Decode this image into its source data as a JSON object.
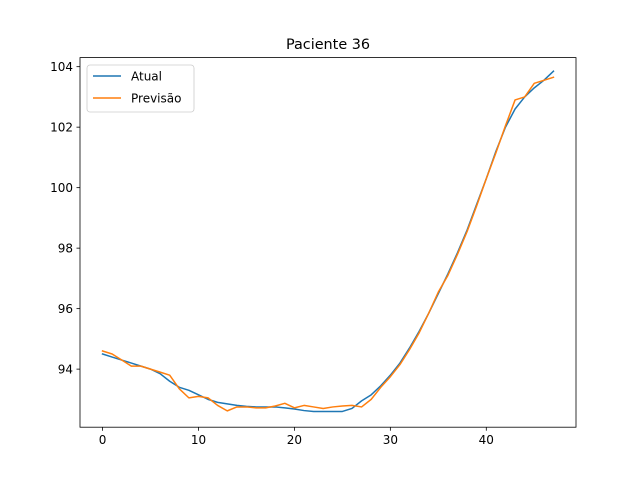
{
  "chart_data": {
    "type": "line",
    "title": "Paciente 36",
    "xlabel": "",
    "ylabel": "",
    "xlim": [
      -2.35,
      49.35
    ],
    "ylim": [
      92.08,
      104.3
    ],
    "xticks": [
      0,
      10,
      20,
      30,
      40
    ],
    "yticks": [
      94,
      96,
      98,
      100,
      102,
      104
    ],
    "grid": false,
    "legend_position": "top-left",
    "series": [
      {
        "name": "Atual",
        "color": "#1f77b4",
        "x": [
          0,
          1,
          2,
          3,
          4,
          5,
          6,
          7,
          8,
          9,
          10,
          11,
          12,
          13,
          14,
          15,
          16,
          17,
          18,
          19,
          20,
          21,
          22,
          23,
          24,
          25,
          26,
          27,
          28,
          29,
          30,
          31,
          32,
          33,
          34,
          35,
          36,
          37,
          38,
          39,
          40,
          41,
          42,
          43,
          44,
          45,
          46,
          47
        ],
        "values": [
          94.5,
          94.4,
          94.3,
          94.2,
          94.1,
          94.0,
          93.85,
          93.6,
          93.4,
          93.3,
          93.15,
          93.0,
          92.9,
          92.85,
          92.8,
          92.77,
          92.75,
          92.75,
          92.75,
          92.72,
          92.68,
          92.63,
          92.6,
          92.6,
          92.6,
          92.6,
          92.7,
          92.95,
          93.15,
          93.45,
          93.8,
          94.2,
          94.7,
          95.25,
          95.85,
          96.5,
          97.15,
          97.85,
          98.6,
          99.45,
          100.3,
          101.2,
          102.0,
          102.6,
          103.0,
          103.3,
          103.55,
          103.85
        ]
      },
      {
        "name": "Previsão",
        "color": "#ff7f0e",
        "x": [
          0,
          1,
          2,
          3,
          4,
          5,
          6,
          7,
          8,
          9,
          10,
          11,
          12,
          13,
          14,
          15,
          16,
          17,
          18,
          19,
          20,
          21,
          22,
          23,
          24,
          25,
          26,
          27,
          28,
          29,
          30,
          31,
          32,
          33,
          34,
          35,
          36,
          37,
          38,
          39,
          40,
          41,
          42,
          43,
          44,
          45,
          46,
          47
        ],
        "values": [
          94.6,
          94.5,
          94.3,
          94.1,
          94.1,
          94.0,
          93.9,
          93.8,
          93.35,
          93.05,
          93.1,
          93.05,
          92.8,
          92.62,
          92.75,
          92.75,
          92.72,
          92.72,
          92.78,
          92.87,
          92.72,
          92.8,
          92.75,
          92.7,
          92.75,
          92.78,
          92.8,
          92.75,
          93.0,
          93.4,
          93.75,
          94.15,
          94.65,
          95.2,
          95.85,
          96.55,
          97.1,
          97.8,
          98.55,
          99.4,
          100.3,
          101.15,
          102.05,
          102.9,
          103.0,
          103.45,
          103.55,
          103.65
        ]
      }
    ]
  }
}
